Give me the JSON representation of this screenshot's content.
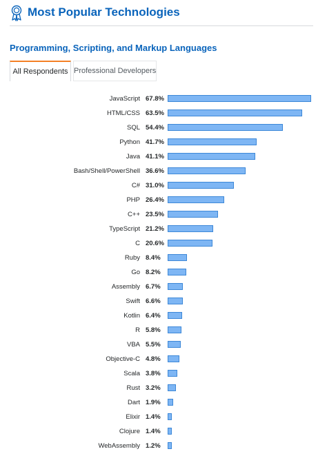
{
  "header": {
    "title": "Most Popular Technologies",
    "icon": "award-ribbon-icon",
    "accent_color": "#0a64bb"
  },
  "section": {
    "title": "Programming, Scripting, and Markup Languages"
  },
  "tabs": [
    {
      "label": "All Respondents",
      "active": true
    },
    {
      "label": "Professional Developers",
      "active": false
    }
  ],
  "colors": {
    "bar_fill": "#7eb6f4",
    "bar_border": "#3c87d7",
    "tab_active_accent": "#f48024"
  },
  "chart_data": {
    "type": "bar",
    "orientation": "horizontal",
    "categories": [
      "JavaScript",
      "HTML/CSS",
      "SQL",
      "Python",
      "Java",
      "Bash/Shell/PowerShell",
      "C#",
      "PHP",
      "C++",
      "TypeScript",
      "C",
      "Ruby",
      "Go",
      "Assembly",
      "Swift",
      "Kotlin",
      "R",
      "VBA",
      "Objective-C",
      "Scala",
      "Rust",
      "Dart",
      "Elixir",
      "Clojure",
      "WebAssembly"
    ],
    "values": [
      67.8,
      63.5,
      54.4,
      41.7,
      41.1,
      36.6,
      31.0,
      26.4,
      23.5,
      21.2,
      20.6,
      8.4,
      8.2,
      6.7,
      6.6,
      6.4,
      5.8,
      5.5,
      4.8,
      3.8,
      3.2,
      1.9,
      1.4,
      1.4,
      1.2
    ],
    "value_labels": [
      "67.8%",
      "63.5%",
      "54.4%",
      "41.7%",
      "41.1%",
      "36.6%",
      "31.0%",
      "26.4%",
      "23.5%",
      "21.2%",
      "20.6%",
      "8.4%",
      "8.2%",
      "6.7%",
      "6.6%",
      "6.4%",
      "5.8%",
      "5.5%",
      "4.8%",
      "3.8%",
      "3.2%",
      "1.9%",
      "1.4%",
      "1.4%",
      "1.2%"
    ],
    "title": "",
    "xlabel": "",
    "ylabel": "",
    "xlim": [
      0,
      67.8
    ],
    "grid": false
  }
}
